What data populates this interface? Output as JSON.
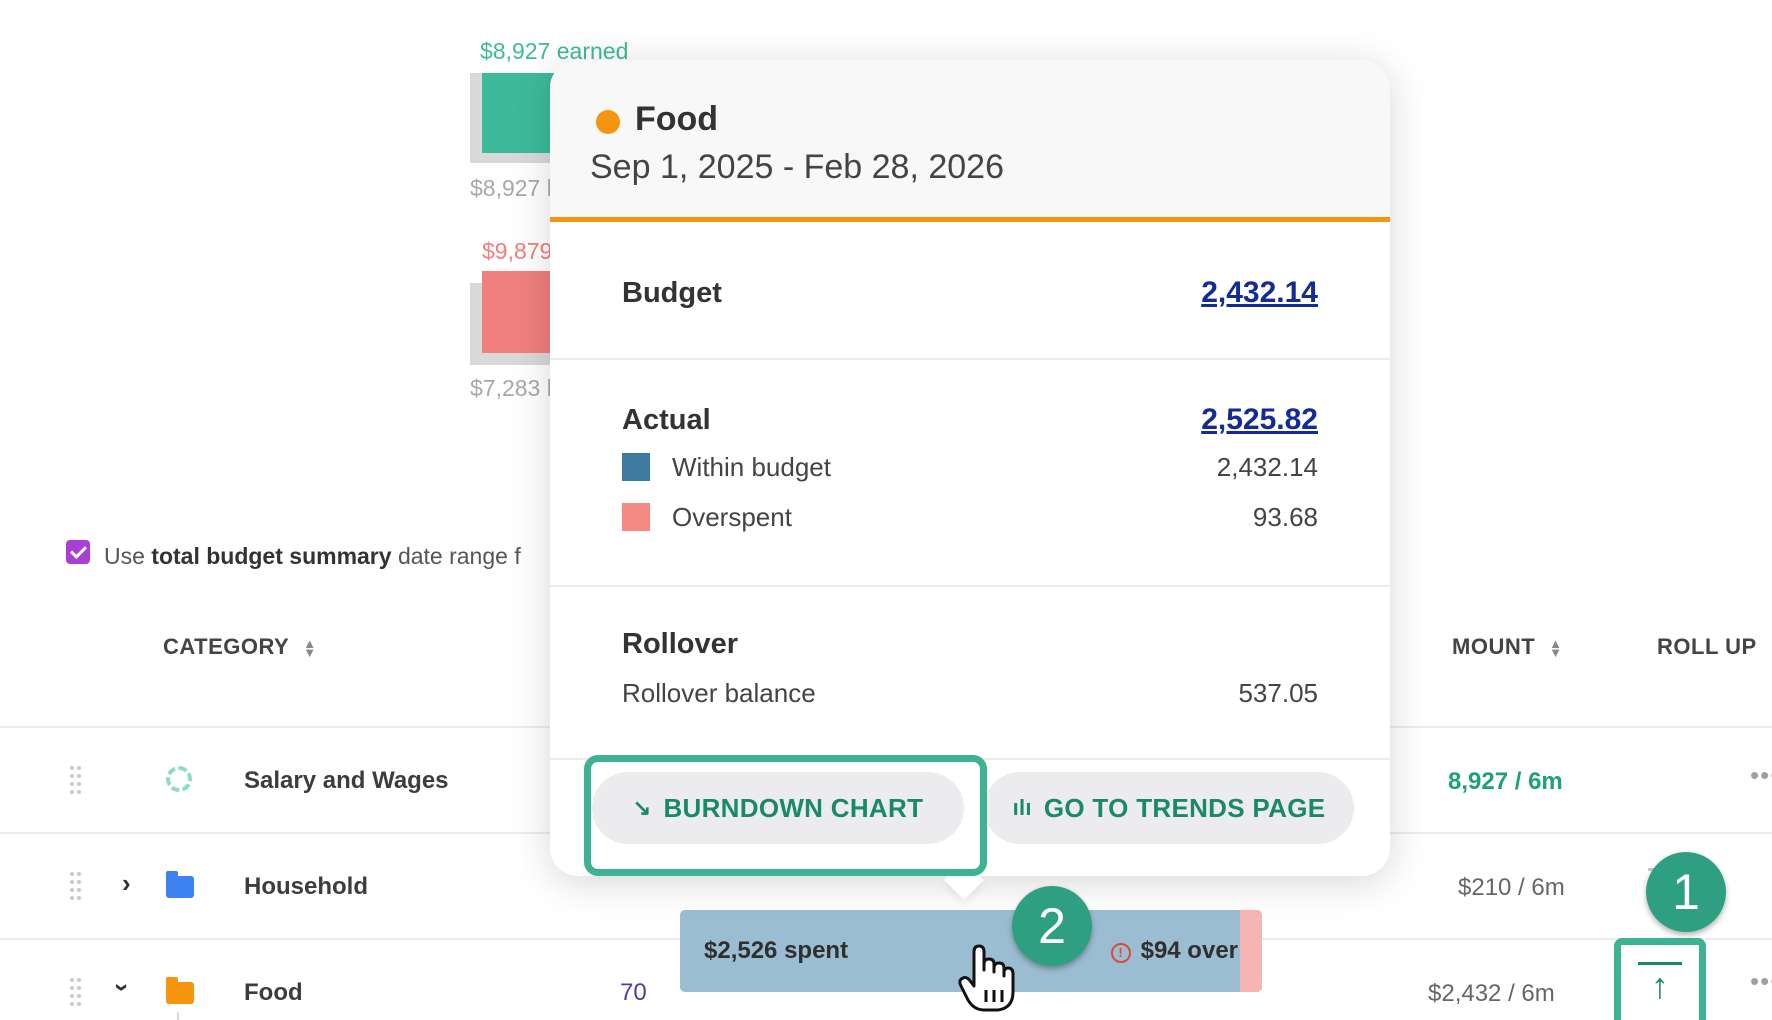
{
  "summary": {
    "earned_label": "$8,927 earned",
    "earned_budget_label": "$8,927 b",
    "spent_label": "$9,879",
    "spent_budget_label": "$7,283 b",
    "earned_color": "#3dba9a",
    "spent_color": "#f07f7f"
  },
  "option": {
    "prefix": "Use",
    "bold": "total budget summary",
    "suffix": "date range f"
  },
  "table": {
    "col_category": "CATEGORY",
    "col_amount": "MOUNT",
    "col_rollup": "ROLL UP",
    "rows": [
      {
        "name": "Salary and Wages",
        "amount": "8,927 / 6m"
      },
      {
        "name": "Household",
        "amount": "$210 / 6m"
      },
      {
        "name": "Food",
        "num": "70",
        "amount": "$2,432 / 6m",
        "spent": "$2,526 spent",
        "over": "$94 over"
      }
    ],
    "more_label": "•••"
  },
  "popup": {
    "title": "Food",
    "date_range": "Sep 1, 2025 - Feb 28, 2026",
    "budget_label": "Budget",
    "budget_value": "2,432.14",
    "actual_label": "Actual",
    "actual_value": "2,525.82",
    "within_label": "Within budget",
    "within_value": "2,432.14",
    "overspent_label": "Overspent",
    "overspent_value": "93.68",
    "rollover_label": "Rollover",
    "rollover_balance_label": "Rollover balance",
    "rollover_balance_value": "537.05",
    "burndown_btn": "BURNDOWN CHART",
    "trends_btn": "GO TO TRENDS PAGE",
    "accent_color": "#f5950f",
    "within_color": "#3d7aa0",
    "overspent_color": "#f48a83"
  },
  "callouts": {
    "one": "1",
    "two": "2"
  }
}
